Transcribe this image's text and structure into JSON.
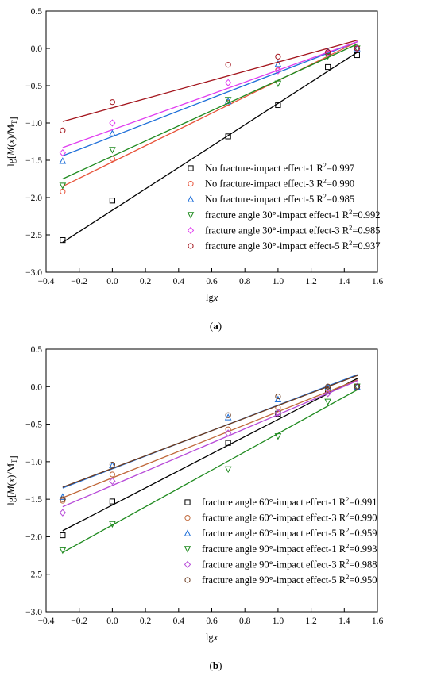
{
  "chart_data": [
    {
      "type": "scatter",
      "panel_label": "(a)",
      "xlabel": "lgx",
      "ylabel": "lg[M(x)/MT]",
      "xlim": [
        -0.4,
        1.6
      ],
      "ylim": [
        -3.0,
        0.5
      ],
      "xticks": [
        "−0.4",
        "−0.2",
        "0.0",
        "0.2",
        "0.4",
        "0.6",
        "0.8",
        "1.0",
        "1.2",
        "1.4",
        "1.6"
      ],
      "yticks": [
        "0.5",
        "0.0",
        "−0.5",
        "−1.0",
        "−1.5",
        "−2.0",
        "−2.5",
        "−3.0"
      ],
      "legend_position": "bottom-right",
      "grid": false,
      "series": [
        {
          "name": "No fracture-impact effect-1",
          "r2": "0.997",
          "marker": "square",
          "color": "#000000",
          "x": [
            -0.3,
            0.0,
            0.699,
            1.0,
            1.301,
            1.477
          ],
          "y": [
            -2.57,
            -2.04,
            -1.18,
            -0.76,
            -0.25,
            -0.09
          ],
          "fit": {
            "x": [
              -0.3,
              1.48
            ],
            "y": [
              -2.6,
              -0.05
            ]
          }
        },
        {
          "name": "No fracture-impact effect-3",
          "r2": "0.990",
          "marker": "circle",
          "color": "#e8533a",
          "x": [
            -0.3,
            0.0,
            0.699,
            1.0,
            1.301,
            1.477
          ],
          "y": [
            -1.92,
            -1.48,
            -0.73,
            -0.29,
            -0.07,
            0.0
          ],
          "fit": {
            "x": [
              -0.3,
              1.48
            ],
            "y": [
              -1.85,
              0.09
            ]
          }
        },
        {
          "name": "No fracture-impact effect-5",
          "r2": "0.985",
          "marker": "triangle-up",
          "color": "#1e6fd9",
          "x": [
            -0.3,
            0.0,
            0.699,
            1.0,
            1.301,
            1.477
          ],
          "y": [
            -1.51,
            -1.14,
            -0.71,
            -0.21,
            -0.04,
            0.0
          ],
          "fit": {
            "x": [
              -0.3,
              1.48
            ],
            "y": [
              -1.44,
              0.09
            ]
          }
        },
        {
          "name": "fracture angle 30°-impact effect-1",
          "r2": "0.992",
          "marker": "triangle-down",
          "color": "#1e8a1e",
          "x": [
            -0.3,
            0.0,
            0.699,
            1.0,
            1.301,
            1.477
          ],
          "y": [
            -1.84,
            -1.36,
            -0.69,
            -0.47,
            -0.1,
            0.0
          ],
          "fit": {
            "x": [
              -0.3,
              1.48
            ],
            "y": [
              -1.75,
              0.06
            ]
          }
        },
        {
          "name": "fracture angle 30°-impact effect-3",
          "r2": "0.985",
          "marker": "diamond",
          "color": "#e03bf0",
          "x": [
            -0.3,
            0.0,
            0.699,
            1.0,
            1.301,
            1.477
          ],
          "y": [
            -1.4,
            -1.0,
            -0.46,
            -0.3,
            -0.06,
            0.0
          ],
          "fit": {
            "x": [
              -0.3,
              1.48
            ],
            "y": [
              -1.33,
              0.09
            ]
          }
        },
        {
          "name": "fracture angle 30°-impact effect-5",
          "r2": "0.937",
          "marker": "circle",
          "color": "#a3141c",
          "x": [
            -0.3,
            0.0,
            0.699,
            1.0,
            1.301,
            1.477
          ],
          "y": [
            -1.1,
            -0.72,
            -0.22,
            -0.11,
            -0.05,
            0.0
          ],
          "fit": {
            "x": [
              -0.3,
              1.48
            ],
            "y": [
              -0.98,
              0.11
            ]
          }
        }
      ]
    },
    {
      "type": "scatter",
      "panel_label": "(b)",
      "xlabel": "lgx",
      "ylabel": "lg[M(x)/MT]",
      "xlim": [
        -0.4,
        1.6
      ],
      "ylim": [
        -3.0,
        0.5
      ],
      "xticks": [
        "−0.4",
        "−0.2",
        "0.0",
        "0.2",
        "0.4",
        "0.6",
        "0.8",
        "1.0",
        "1.2",
        "1.4",
        "1.6"
      ],
      "yticks": [
        "0.5",
        "0.0",
        "−0.5",
        "−1.0",
        "−1.5",
        "−2.0",
        "−2.5",
        "−3.0"
      ],
      "legend_position": "bottom-right",
      "grid": false,
      "series": [
        {
          "name": "fracture angle 60°-impact effect-1",
          "r2": "0.991",
          "marker": "square",
          "color": "#000000",
          "x": [
            -0.3,
            0.0,
            0.699,
            1.0,
            1.301,
            1.477
          ],
          "y": [
            -1.98,
            -1.53,
            -0.75,
            -0.36,
            -0.05,
            0.0
          ],
          "fit": {
            "x": [
              -0.3,
              1.48
            ],
            "y": [
              -1.92,
              0.11
            ]
          }
        },
        {
          "name": "fracture angle 60°-impact effect-3",
          "r2": "0.990",
          "marker": "circle",
          "color": "#c0683a",
          "x": [
            -0.3,
            0.0,
            0.699,
            1.0,
            1.301,
            1.477
          ],
          "y": [
            -1.52,
            -1.17,
            -0.57,
            -0.28,
            -0.04,
            0.0
          ],
          "fit": {
            "x": [
              -0.3,
              1.48
            ],
            "y": [
              -1.48,
              0.09
            ]
          }
        },
        {
          "name": "fracture angle 60°-impact effect-5",
          "r2": "0.959",
          "marker": "triangle-up",
          "color": "#1e6fd9",
          "x": [
            -0.3,
            0.0,
            0.699,
            1.0,
            1.301,
            1.477
          ],
          "y": [
            -1.47,
            -1.05,
            -0.41,
            -0.17,
            -0.01,
            0.0
          ],
          "fit": {
            "x": [
              -0.3,
              1.48
            ],
            "y": [
              -1.35,
              0.16
            ]
          }
        },
        {
          "name": "fracture angle 90°-impact effect-1",
          "r2": "0.993",
          "marker": "triangle-down",
          "color": "#1e8a1e",
          "x": [
            -0.3,
            0.0,
            0.699,
            1.0,
            1.301,
            1.477
          ],
          "y": [
            -2.18,
            -1.83,
            -1.1,
            -0.66,
            -0.2,
            0.0
          ],
          "fit": {
            "x": [
              -0.3,
              1.48
            ],
            "y": [
              -2.21,
              -0.04
            ]
          }
        },
        {
          "name": "fracture angle 90°-impact effect-3",
          "r2": "0.988",
          "marker": "diamond",
          "color": "#b74ad8",
          "x": [
            -0.3,
            0.0,
            0.699,
            1.0,
            1.301,
            1.477
          ],
          "y": [
            -1.68,
            -1.26,
            -0.62,
            -0.35,
            -0.09,
            0.0
          ],
          "fit": {
            "x": [
              -0.3,
              1.48
            ],
            "y": [
              -1.6,
              0.08
            ]
          }
        },
        {
          "name": "fracture angle 90°-impact effect-5",
          "r2": "0.950",
          "marker": "circle",
          "color": "#6b3a1e",
          "x": [
            -0.3,
            0.0,
            0.699,
            1.0,
            1.301,
            1.477
          ],
          "y": [
            -1.5,
            -1.04,
            -0.38,
            -0.13,
            0.0,
            0.0
          ],
          "fit": {
            "x": [
              -0.3,
              1.48
            ],
            "y": [
              -1.34,
              0.15
            ]
          }
        }
      ]
    }
  ]
}
